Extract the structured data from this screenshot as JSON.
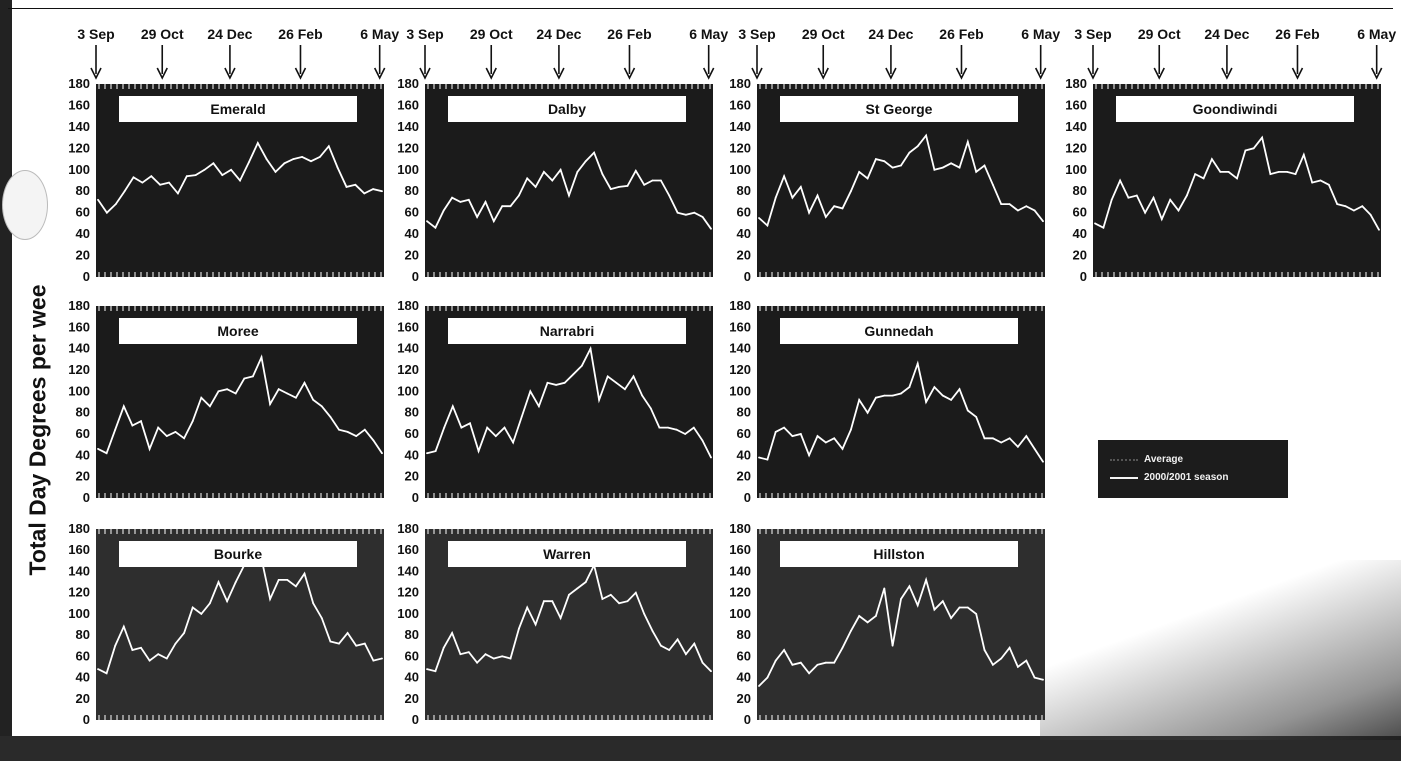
{
  "ylabel": "Total Day Degrees per wee",
  "legend": {
    "average": "Average",
    "season": "2000/2001 season"
  },
  "colors": {
    "panel_bg": "#1b1b1b",
    "panel_bg_faded": "#2e2e2e",
    "season_line": "#ffffff",
    "title_box": "#ffffff"
  },
  "chart_data": [
    {
      "type": "line",
      "title": "Emerald",
      "xticks": [
        "3 Sep",
        "29 Oct",
        "24 Dec",
        "26 Feb",
        "6 May"
      ],
      "ylim": [
        0,
        180
      ],
      "yticks": [
        0,
        20,
        40,
        60,
        80,
        100,
        120,
        140,
        160,
        180
      ],
      "series": [
        {
          "name": "2000/2001 season",
          "values": [
            72,
            60,
            68,
            80,
            93,
            88,
            94,
            86,
            88,
            78,
            94,
            95,
            100,
            106,
            95,
            100,
            90,
            107,
            125,
            110,
            98,
            106,
            110,
            112,
            108,
            112,
            122,
            102,
            84,
            86,
            78,
            82,
            80
          ]
        }
      ]
    },
    {
      "type": "line",
      "title": "Dalby",
      "xticks": [
        "3 Sep",
        "29 Oct",
        "24 Dec",
        "26 Feb",
        "6 May"
      ],
      "ylim": [
        0,
        180
      ],
      "yticks": [
        0,
        20,
        40,
        60,
        80,
        100,
        120,
        140,
        160,
        180
      ],
      "series": [
        {
          "name": "2000/2001 season",
          "values": [
            52,
            46,
            62,
            74,
            70,
            72,
            56,
            70,
            52,
            66,
            66,
            76,
            92,
            84,
            98,
            90,
            100,
            76,
            98,
            108,
            116,
            96,
            82,
            84,
            85,
            99,
            86,
            90,
            90,
            76,
            60,
            58,
            60,
            56,
            45
          ]
        }
      ]
    },
    {
      "type": "line",
      "title": "St George",
      "xticks": [
        "3 Sep",
        "29 Oct",
        "24 Dec",
        "26 Feb",
        "6 May"
      ],
      "ylim": [
        0,
        180
      ],
      "yticks": [
        0,
        20,
        40,
        60,
        80,
        100,
        120,
        140,
        160,
        180
      ],
      "series": [
        {
          "name": "2000/2001 season",
          "values": [
            55,
            48,
            74,
            94,
            74,
            84,
            60,
            76,
            56,
            66,
            64,
            80,
            98,
            92,
            110,
            108,
            102,
            104,
            116,
            122,
            132,
            100,
            102,
            106,
            102,
            126,
            98,
            104,
            86,
            68,
            68,
            62,
            66,
            62,
            52
          ]
        }
      ]
    },
    {
      "type": "line",
      "title": "Goondiwindi",
      "xticks": [
        "3 Sep",
        "29 Oct",
        "24 Dec",
        "26 Feb",
        "6 May"
      ],
      "ylim": [
        0,
        180
      ],
      "yticks": [
        0,
        20,
        40,
        60,
        80,
        100,
        120,
        140,
        160,
        180
      ],
      "series": [
        {
          "name": "2000/2001 season",
          "values": [
            50,
            46,
            72,
            90,
            74,
            76,
            60,
            74,
            54,
            72,
            62,
            76,
            96,
            92,
            110,
            98,
            98,
            92,
            118,
            120,
            130,
            96,
            98,
            98,
            96,
            114,
            88,
            90,
            86,
            68,
            66,
            62,
            66,
            58,
            44
          ]
        }
      ]
    },
    {
      "type": "line",
      "title": "Moree",
      "xticks": [
        "3 Sep",
        "29 Oct",
        "24 Dec",
        "26 Feb",
        "6 May"
      ],
      "ylim": [
        0,
        180
      ],
      "yticks": [
        0,
        20,
        40,
        60,
        80,
        100,
        120,
        140,
        160,
        180
      ],
      "series": [
        {
          "name": "2000/2001 season",
          "values": [
            46,
            42,
            64,
            86,
            68,
            72,
            46,
            66,
            58,
            62,
            56,
            72,
            94,
            86,
            100,
            102,
            98,
            112,
            114,
            132,
            88,
            102,
            98,
            94,
            108,
            92,
            86,
            76,
            64,
            62,
            58,
            64,
            54,
            42
          ]
        }
      ]
    },
    {
      "type": "line",
      "title": "Narrabri",
      "xticks": [
        "3 Sep",
        "29 Oct",
        "24 Dec",
        "26 Feb",
        "6 May"
      ],
      "ylim": [
        0,
        180
      ],
      "yticks": [
        0,
        20,
        40,
        60,
        80,
        100,
        120,
        140,
        160,
        180
      ],
      "series": [
        {
          "name": "2000/2001 season",
          "values": [
            42,
            44,
            66,
            86,
            66,
            70,
            44,
            66,
            58,
            66,
            52,
            76,
            100,
            86,
            108,
            106,
            108,
            116,
            124,
            140,
            92,
            114,
            108,
            102,
            114,
            96,
            84,
            66,
            66,
            64,
            60,
            66,
            54,
            38
          ]
        }
      ]
    },
    {
      "type": "line",
      "title": "Gunnedah",
      "xticks": [
        "3 Sep",
        "29 Oct",
        "24 Dec",
        "26 Feb",
        "6 May"
      ],
      "ylim": [
        0,
        180
      ],
      "yticks": [
        0,
        20,
        40,
        60,
        80,
        100,
        120,
        140,
        160,
        180
      ],
      "series": [
        {
          "name": "2000/2001 season",
          "values": [
            38,
            36,
            62,
            66,
            58,
            60,
            40,
            58,
            52,
            56,
            46,
            64,
            92,
            80,
            94,
            96,
            96,
            98,
            104,
            126,
            90,
            104,
            96,
            92,
            102,
            82,
            76,
            56,
            56,
            52,
            56,
            48,
            58,
            46,
            34
          ]
        }
      ]
    },
    {
      "type": "line",
      "title": "Bourke",
      "xticks": [
        "3 Sep",
        "29 Oct",
        "24 Dec",
        "26 Feb",
        "6 May"
      ],
      "ylim": [
        0,
        180
      ],
      "yticks": [
        0,
        20,
        40,
        60,
        80,
        100,
        120,
        140,
        160,
        180
      ],
      "series": [
        {
          "name": "2000/2001 season",
          "values": [
            48,
            44,
            70,
            88,
            66,
            68,
            56,
            62,
            58,
            72,
            82,
            106,
            100,
            110,
            130,
            112,
            130,
            146,
            148,
            152,
            114,
            132,
            132,
            126,
            138,
            110,
            96,
            74,
            72,
            82,
            70,
            72,
            56,
            58
          ]
        }
      ]
    },
    {
      "type": "line",
      "title": "Warren",
      "xticks": [
        "3 Sep",
        "29 Oct",
        "24 Dec",
        "26 Feb",
        "6 May"
      ],
      "ylim": [
        0,
        180
      ],
      "yticks": [
        0,
        20,
        40,
        60,
        80,
        100,
        120,
        140,
        160,
        180
      ],
      "series": [
        {
          "name": "2000/2001 season",
          "values": [
            48,
            46,
            68,
            82,
            62,
            64,
            54,
            62,
            58,
            60,
            58,
            86,
            106,
            90,
            112,
            112,
            96,
            118,
            124,
            130,
            146,
            114,
            118,
            110,
            112,
            120,
            100,
            84,
            70,
            66,
            76,
            62,
            72,
            54,
            46
          ]
        }
      ]
    },
    {
      "type": "line",
      "title": "Hillston",
      "xticks": [
        "3 Sep",
        "29 Oct",
        "24 Dec",
        "26 Feb",
        "6 May"
      ],
      "ylim": [
        0,
        180
      ],
      "yticks": [
        0,
        20,
        40,
        60,
        80,
        100,
        120,
        140,
        160,
        180
      ],
      "series": [
        {
          "name": "2000/2001 season",
          "values": [
            32,
            40,
            56,
            66,
            52,
            54,
            44,
            52,
            54,
            54,
            68,
            84,
            98,
            92,
            98,
            124,
            70,
            114,
            126,
            108,
            132,
            104,
            112,
            96,
            106,
            106,
            100,
            66,
            52,
            58,
            68,
            50,
            56,
            40,
            38
          ]
        }
      ]
    }
  ]
}
